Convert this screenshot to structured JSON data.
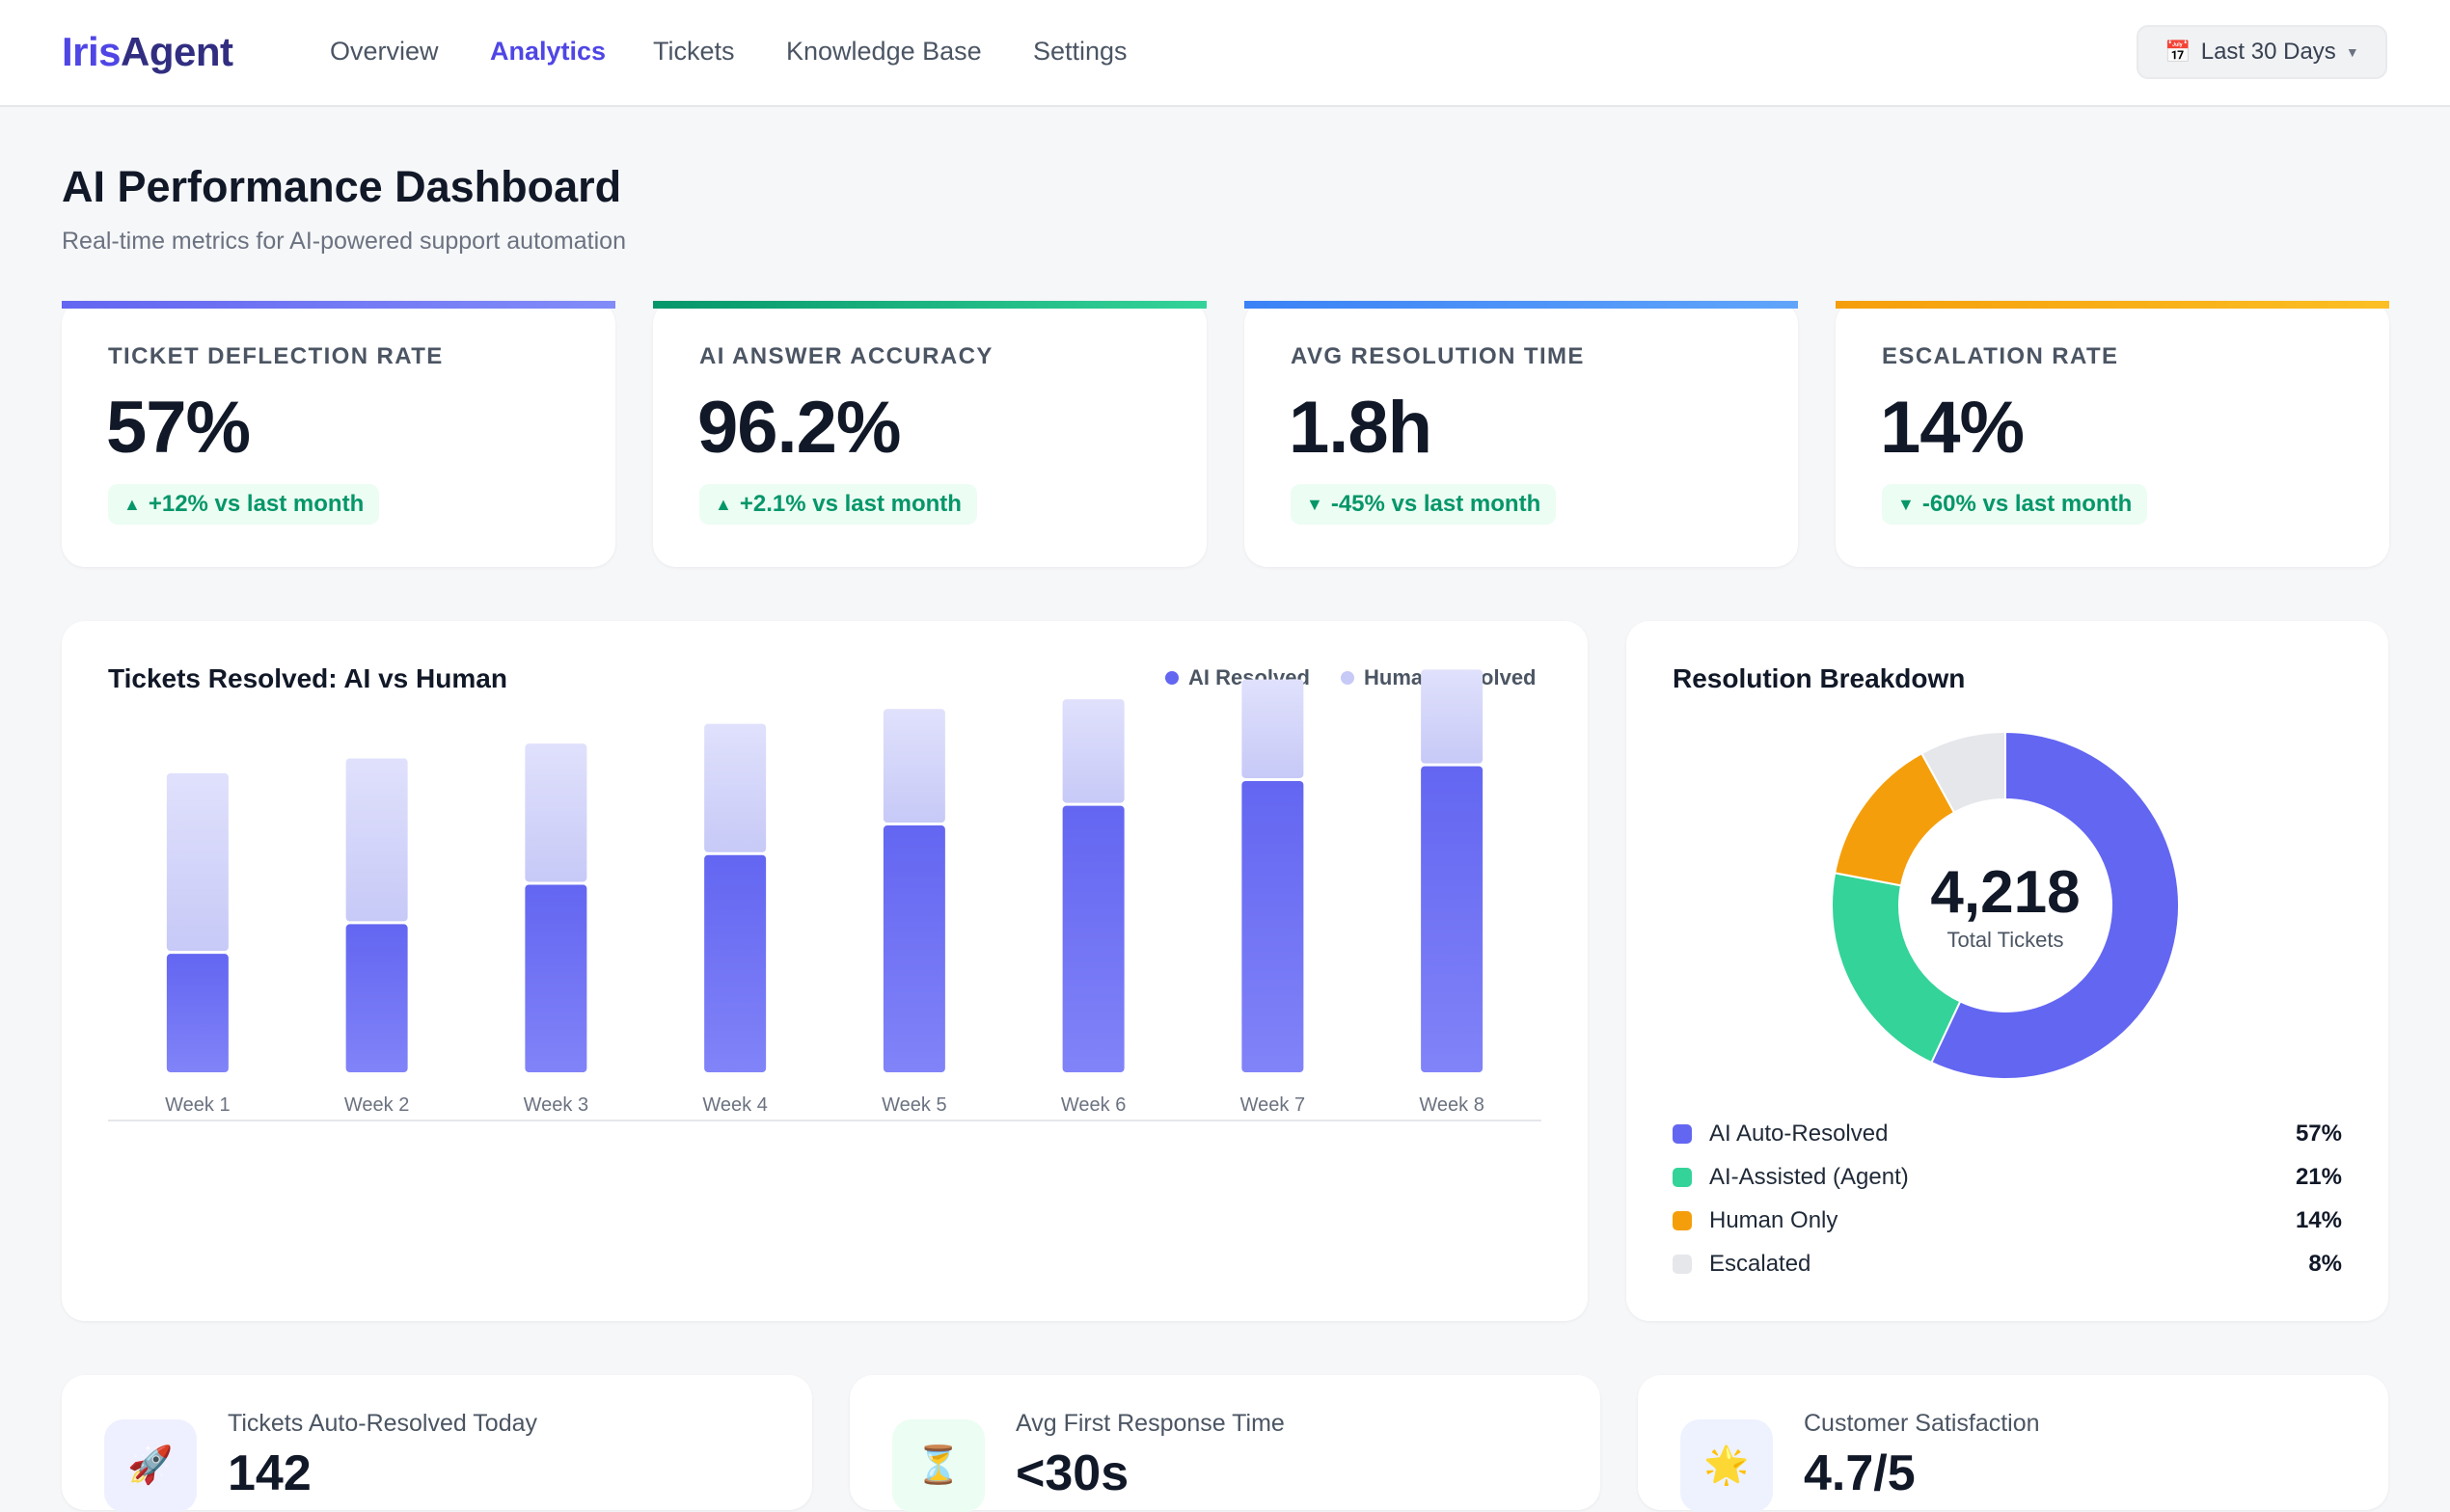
{
  "header": {
    "logo_part1": "Iris",
    "logo_part2": "Agent",
    "nav": [
      "Overview",
      "Analytics",
      "Tickets",
      "Knowledge Base",
      "Settings"
    ],
    "active_nav": "Analytics",
    "date_range_icon": "📅",
    "date_range": "Last 30 Days",
    "date_range_caret": "▼"
  },
  "page": {
    "title": "AI Performance Dashboard",
    "subtitle": "Real-time metrics for AI-powered support automation"
  },
  "kpis": [
    {
      "label": "TICKET DEFLECTION RATE",
      "value": "57%",
      "delta": "+12% vs last month",
      "direction": "up",
      "arrow": "▲",
      "accent": [
        "#6366f1",
        "#818cf8"
      ]
    },
    {
      "label": "AI ANSWER ACCURACY",
      "value": "96.2%",
      "delta": "+2.1% vs last month",
      "direction": "up",
      "arrow": "▲",
      "accent": [
        "#059669",
        "#34d399"
      ]
    },
    {
      "label": "AVG RESOLUTION TIME",
      "value": "1.8h",
      "delta": "-45% vs last month",
      "direction": "down",
      "arrow": "▼",
      "accent": [
        "#3b82f6",
        "#60a5fa"
      ]
    },
    {
      "label": "ESCALATION RATE",
      "value": "14%",
      "delta": "-60% vs last month",
      "direction": "down",
      "arrow": "▼",
      "accent": [
        "#f59e0b",
        "#fbbf24"
      ]
    }
  ],
  "bar_chart": {
    "title": "Tickets Resolved: AI vs Human",
    "legend": [
      {
        "name": "AI Resolved",
        "color": "#6366f1"
      },
      {
        "name": "Human Resolved",
        "color": "#c7c9f7"
      }
    ]
  },
  "chart_data": {
    "type": "bar",
    "stacked": true,
    "title": "Tickets Resolved: AI vs Human",
    "categories": [
      "Week 1",
      "Week 2",
      "Week 3",
      "Week 4",
      "Week 5",
      "Week 6",
      "Week 7",
      "Week 8"
    ],
    "series": [
      {
        "name": "AI Resolved",
        "values": [
          120,
          150,
          190,
          220,
          250,
          270,
          295,
          310
        ]
      },
      {
        "name": "Human Resolved",
        "values": [
          180,
          165,
          140,
          130,
          115,
          105,
          100,
          95
        ]
      }
    ],
    "ylim": [
      0,
      420
    ],
    "grid": false,
    "legend_position": "top-right"
  },
  "donut": {
    "title": "Resolution Breakdown",
    "total": "4,218",
    "caption": "Total Tickets",
    "items": [
      {
        "name": "AI Auto-Resolved",
        "pct_label": "57%",
        "value": 57,
        "color": "#6366f1"
      },
      {
        "name": "AI-Assisted (Agent)",
        "pct_label": "21%",
        "value": 21,
        "color": "#34d399"
      },
      {
        "name": "Human Only",
        "pct_label": "14%",
        "value": 14,
        "color": "#f59e0b"
      },
      {
        "name": "Escalated",
        "pct_label": "8%",
        "value": 8,
        "color": "#e5e7eb"
      }
    ]
  },
  "stats": [
    {
      "icon": "rocket-icon",
      "glyph": "🚀",
      "label": "Tickets Auto-Resolved Today",
      "value": "142",
      "tint": "#eef0ff"
    },
    {
      "icon": "stopwatch-icon",
      "glyph": "⏳",
      "label": "Avg First Response Time",
      "value": "<30s",
      "tint": "#ecfdf3"
    },
    {
      "icon": "star-icon",
      "glyph": "🌟",
      "label": "Customer Satisfaction",
      "value": "4.7/5",
      "tint": "#eef2ff"
    }
  ]
}
